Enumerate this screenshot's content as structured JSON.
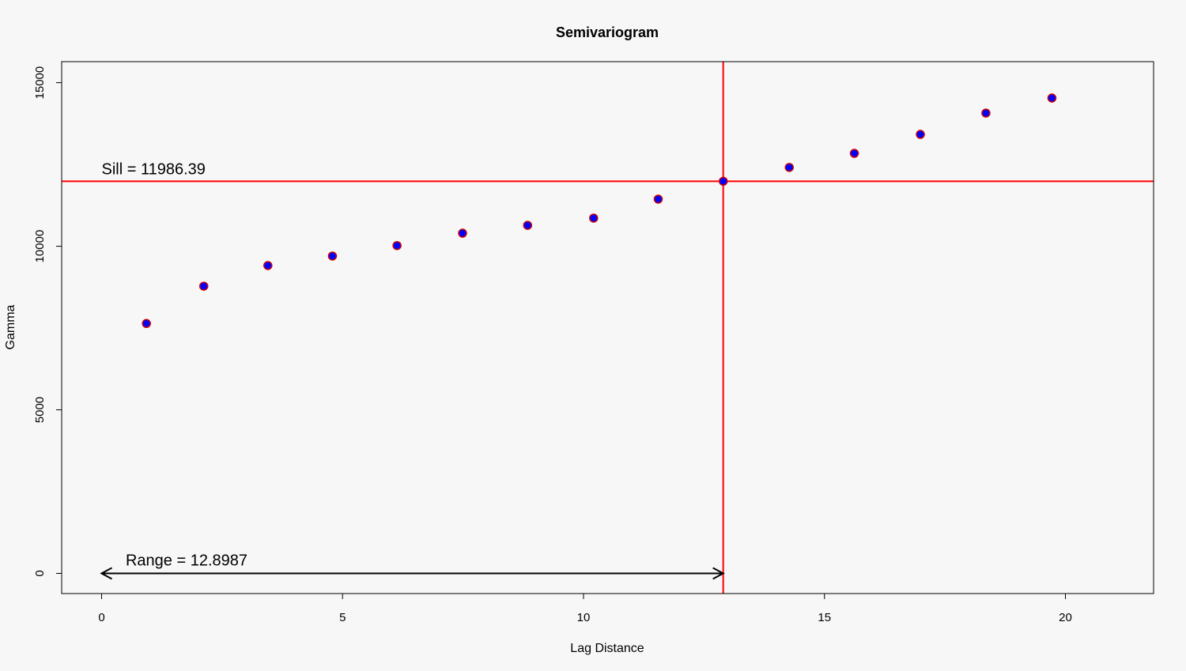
{
  "chart_data": {
    "type": "scatter",
    "title": "Semivariogram",
    "xlabel": "Lag Distance",
    "ylabel": "Gamma",
    "xlim": [
      -0.85,
      21.8
    ],
    "ylim": [
      -620,
      15630
    ],
    "xticks": [
      0,
      5,
      10,
      15,
      20
    ],
    "yticks": [
      0,
      5000,
      10000,
      15000
    ],
    "xtick_labels": [
      "0",
      "5",
      "10",
      "15",
      "20"
    ],
    "ytick_labels": [
      "0",
      "5000",
      "10000",
      "15000"
    ],
    "grid": false,
    "point_color": "#0000ff",
    "point_edge_color": "#cc0000",
    "line_color": "#ff0000",
    "points": [
      {
        "x": 0.93,
        "y": 7640
      },
      {
        "x": 2.12,
        "y": 8780
      },
      {
        "x": 3.45,
        "y": 9410
      },
      {
        "x": 4.79,
        "y": 9700
      },
      {
        "x": 6.13,
        "y": 10020
      },
      {
        "x": 7.49,
        "y": 10400
      },
      {
        "x": 8.84,
        "y": 10640
      },
      {
        "x": 10.21,
        "y": 10860
      },
      {
        "x": 11.55,
        "y": 11440
      },
      {
        "x": 12.9,
        "y": 11986
      },
      {
        "x": 14.27,
        "y": 12410
      },
      {
        "x": 15.62,
        "y": 12840
      },
      {
        "x": 16.99,
        "y": 13420
      },
      {
        "x": 18.35,
        "y": 14070
      },
      {
        "x": 19.72,
        "y": 14530
      }
    ],
    "sill": 11986.39,
    "range": 12.8987,
    "sill_text": "Sill = 11986.39",
    "range_text": "Range = 12.8987"
  }
}
